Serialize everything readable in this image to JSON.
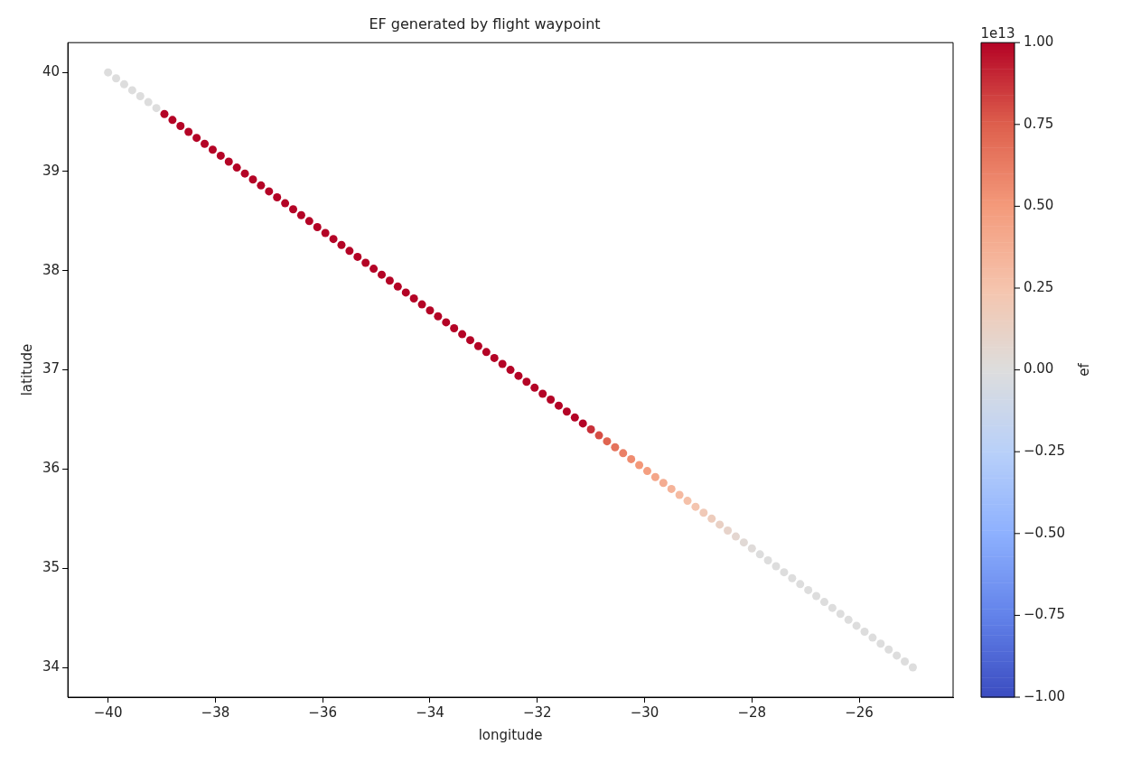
{
  "chart_data": {
    "type": "scatter",
    "title": "EF generated by flight waypoint",
    "xlabel": "longitude",
    "ylabel": "latitude",
    "clabel": "ef",
    "annotations": [
      "1e13"
    ],
    "x": [
      -40,
      -39.85,
      -39.7,
      -39.55,
      -39.4,
      -39.25,
      -39.1,
      -38.95,
      -38.8,
      -38.65,
      -38.5,
      -38.35,
      -38.2,
      -38.05,
      -37.9,
      -37.75,
      -37.6,
      -37.45,
      -37.3,
      -37.15,
      -37,
      -36.85,
      -36.7,
      -36.55,
      -36.4,
      -36.25,
      -36.1,
      -35.95,
      -35.8,
      -35.65,
      -35.5,
      -35.35,
      -35.2,
      -35.05,
      -34.9,
      -34.75,
      -34.6,
      -34.45,
      -34.3,
      -34.15,
      -34,
      -33.85,
      -33.7,
      -33.55,
      -33.4,
      -33.25,
      -33.1,
      -32.95,
      -32.8,
      -32.65,
      -32.5,
      -32.35,
      -32.2,
      -32.05,
      -31.9,
      -31.75,
      -31.6,
      -31.45,
      -31.3,
      -31.15,
      -31,
      -30.85,
      -30.7,
      -30.55,
      -30.4,
      -30.25,
      -30.1,
      -29.95,
      -29.8,
      -29.65,
      -29.5,
      -29.35,
      -29.2,
      -29.05,
      -28.9,
      -28.75,
      -28.6,
      -28.45,
      -28.3,
      -28.15,
      -28,
      -27.85,
      -27.7,
      -27.55,
      -27.4,
      -27.25,
      -27.1,
      -26.95,
      -26.8,
      -26.65,
      -26.5,
      -26.35,
      -26.2,
      -26.05,
      -25.9,
      -25.75,
      -25.6,
      -25.45,
      -25.3,
      -25.15,
      -25
    ],
    "values": [
      40,
      39.94,
      39.88,
      39.82,
      39.76,
      39.7,
      39.64,
      39.58,
      39.52,
      39.46,
      39.4,
      39.34,
      39.28,
      39.22,
      39.16,
      39.1,
      39.04,
      38.98,
      38.92,
      38.86,
      38.8,
      38.74,
      38.68,
      38.62,
      38.56,
      38.5,
      38.44,
      38.38,
      38.32,
      38.26,
      38.2,
      38.14,
      38.08,
      38.02,
      37.96,
      37.9,
      37.84,
      37.78,
      37.72,
      37.66,
      37.6,
      37.54,
      37.48,
      37.42,
      37.36,
      37.3,
      37.24,
      37.18,
      37.12,
      37.06,
      37,
      36.94,
      36.88,
      36.82,
      36.76,
      36.7,
      36.64,
      36.58,
      36.52,
      36.46,
      36.4,
      36.34,
      36.28,
      36.22,
      36.16,
      36.1,
      36.04,
      35.98,
      35.92,
      35.86,
      35.8,
      35.74,
      35.68,
      35.62,
      35.56,
      35.5,
      35.44,
      35.38,
      35.32,
      35.26,
      35.2,
      35.14,
      35.08,
      35.02,
      34.96,
      34.9,
      34.84,
      34.78,
      34.72,
      34.66,
      34.6,
      34.54,
      34.48,
      34.42,
      34.36,
      34.3,
      34.24,
      34.18,
      34.12,
      34.06,
      34
    ],
    "cvalues": [
      0,
      0,
      0,
      0,
      0,
      0,
      0,
      1,
      1,
      1,
      1,
      1,
      1,
      1,
      1,
      1,
      1,
      1,
      1,
      1,
      1,
      1,
      1,
      1,
      1,
      1,
      1,
      1,
      1,
      1,
      1,
      1,
      1,
      1,
      1,
      1,
      1,
      1,
      1,
      1,
      1,
      1,
      1,
      1,
      1,
      1,
      1,
      1,
      1,
      1,
      1,
      1,
      1,
      1,
      1,
      1,
      1,
      1,
      1,
      1,
      0.88,
      0.8,
      0.73,
      0.67,
      0.61,
      0.56,
      0.51,
      0.47,
      0.43,
      0.39,
      0.35,
      0.31,
      0.27,
      0.24,
      0.2,
      0.17,
      0.13,
      0.1,
      0.07,
      0.04,
      0.02,
      0,
      0,
      0,
      0,
      0,
      0,
      0,
      0,
      0,
      0,
      0,
      0,
      0,
      0,
      0,
      0,
      0,
      0,
      0,
      0
    ],
    "xlim": [
      -40.75,
      -24.25
    ],
    "xticks": [
      {
        "value": -40,
        "label": "−40"
      },
      {
        "value": -38,
        "label": "−38"
      },
      {
        "value": -36,
        "label": "−36"
      },
      {
        "value": -34,
        "label": "−34"
      },
      {
        "value": -32,
        "label": "−32"
      },
      {
        "value": -30,
        "label": "−30"
      },
      {
        "value": -28,
        "label": "−28"
      },
      {
        "value": -26,
        "label": "−26"
      }
    ],
    "ylim": [
      33.7,
      40.3
    ],
    "yticks": [
      34,
      35,
      36,
      37,
      38,
      39,
      40
    ],
    "clim": [
      -1,
      1
    ],
    "cticks": [
      {
        "value": -1,
        "label": "−1.00"
      },
      {
        "value": -0.75,
        "label": "−0.75"
      },
      {
        "value": -0.5,
        "label": "−0.50"
      },
      {
        "value": -0.25,
        "label": "−0.25"
      },
      {
        "value": 0,
        "label": "0.00"
      },
      {
        "value": 0.25,
        "label": "0.25"
      },
      {
        "value": 0.5,
        "label": "0.50"
      },
      {
        "value": 0.75,
        "label": "0.75"
      },
      {
        "value": 1,
        "label": "1.00"
      }
    ],
    "marker": "circle",
    "grid": false,
    "legend": false
  }
}
